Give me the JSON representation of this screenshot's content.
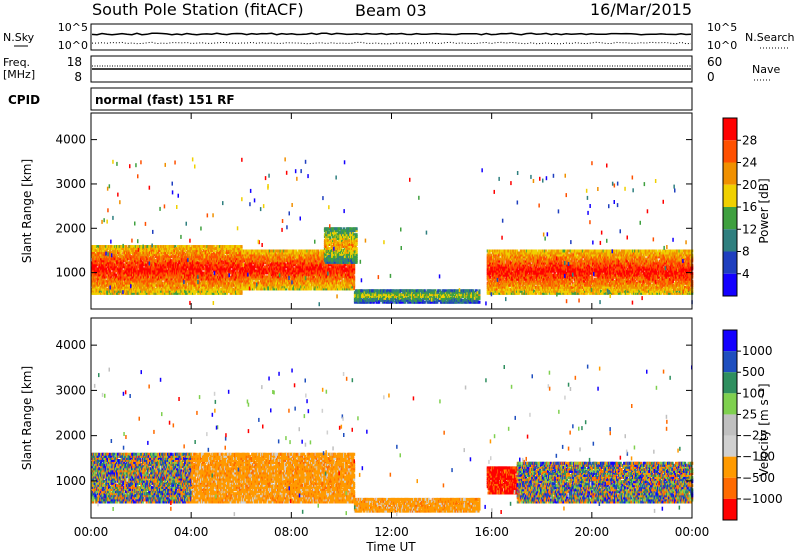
{
  "header": {
    "station": "South Pole Station (fitACF)",
    "beam": "Beam 03",
    "date": "16/Mar/2015"
  },
  "strip_labels": {
    "nsky": "N.Sky",
    "nsearch": "N.Search",
    "freq": "Freq.",
    "mhz": "[MHz]",
    "nave": "Nave",
    "cpid": "CPID",
    "cpid_value": "normal (fast) 151 RF",
    "noise_ticks_left": [
      "10^5",
      "10^0"
    ],
    "noise_ticks_right": [
      "10^5",
      "10^0"
    ],
    "freq_ticks": [
      "18",
      "8"
    ],
    "nave_ticks": [
      "60",
      "0"
    ]
  },
  "colors": {
    "power": [
      "#1400ff",
      "#1f3fbf",
      "#2f7f7f",
      "#3fa03f",
      "#f0d000",
      "#f09000",
      "#ff5000",
      "#ff0000"
    ],
    "velocity": [
      "#ff0000",
      "#ff6a00",
      "#ff9a00",
      "#d0d0d0",
      "#c0c0c0",
      "#7fd04f",
      "#2f8f5f",
      "#1f4fbf",
      "#1400ff"
    ]
  },
  "chart_data": [
    {
      "type": "heatmap",
      "name": "power-panel",
      "ylabel": "Slant Range [km]",
      "ylim": [
        180,
        4600
      ],
      "yticks": [
        "1000",
        "2000",
        "3000",
        "4000"
      ],
      "x_hours": [
        0,
        4,
        8,
        12,
        16,
        20,
        24
      ],
      "colorbar": {
        "label": "Power [dB]",
        "ticks": [
          "4",
          "8",
          "12",
          "16",
          "20",
          "24",
          "28"
        ]
      },
      "approx_features": [
        {
          "x0": 0.0,
          "x1": 6.0,
          "y0": 500,
          "y1": 1600,
          "level": "high"
        },
        {
          "x0": 6.0,
          "x1": 10.5,
          "y0": 600,
          "y1": 1500,
          "level": "high"
        },
        {
          "x0": 9.3,
          "x1": 10.6,
          "y0": 1200,
          "y1": 2000,
          "level": "medium"
        },
        {
          "x0": 10.5,
          "x1": 15.5,
          "y0": 300,
          "y1": 600,
          "level": "low"
        },
        {
          "x0": 15.8,
          "x1": 24.0,
          "y0": 500,
          "y1": 1500,
          "level": "high"
        }
      ]
    },
    {
      "type": "heatmap",
      "name": "velocity-panel",
      "ylabel": "Slant Range [km]",
      "xlabel": "Time UT",
      "ylim": [
        180,
        4600
      ],
      "yticks": [
        "1000",
        "2000",
        "3000",
        "4000"
      ],
      "x_hours": [
        0,
        4,
        8,
        12,
        16,
        20,
        24
      ],
      "xtick_labels": [
        "00:00",
        "04:00",
        "08:00",
        "12:00",
        "16:00",
        "20:00",
        "00:00"
      ],
      "colorbar": {
        "label": "Velocity [m s⁻¹]",
        "ticks": [
          "1000",
          "500",
          "100",
          "25",
          "−25",
          "−100",
          "−500",
          "−1000"
        ]
      },
      "approx_features": [
        {
          "x0": 0.0,
          "x1": 4.0,
          "y0": 500,
          "y1": 1600,
          "velocity": "mixed green/orange"
        },
        {
          "x0": 4.0,
          "x1": 10.5,
          "y0": 500,
          "y1": 1600,
          "velocity": "orange (negative)"
        },
        {
          "x0": 10.5,
          "x1": 15.5,
          "y0": 300,
          "y1": 600,
          "velocity": "orange (negative)"
        },
        {
          "x0": 15.8,
          "x1": 17.0,
          "y0": 700,
          "y1": 1300,
          "velocity": "red (strongly negative)"
        },
        {
          "x0": 17.0,
          "x1": 24.0,
          "y0": 500,
          "y1": 1400,
          "velocity": "mixed blue/green/orange"
        }
      ]
    }
  ]
}
